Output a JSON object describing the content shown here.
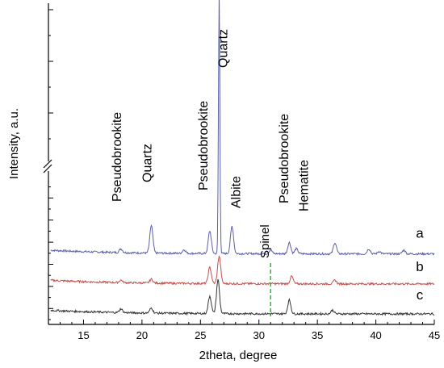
{
  "chart_data": {
    "type": "line",
    "xlabel": "2theta, degree",
    "ylabel": "Intensity, a.u.",
    "xlim": [
      12,
      45
    ],
    "xticks": [
      15,
      20,
      25,
      30,
      35,
      40,
      45
    ],
    "y_axis_break": true,
    "grid": false,
    "series": [
      {
        "name": "a",
        "color": "#5a5fa8",
        "baseline": 48,
        "peaks": [
          [
            18.2,
            3
          ],
          [
            20.8,
            22
          ],
          [
            23.6,
            3
          ],
          [
            25.8,
            18
          ],
          [
            26.6,
            210
          ],
          [
            27.7,
            22
          ],
          [
            31.0,
            3
          ],
          [
            32.6,
            9
          ],
          [
            33.2,
            4
          ],
          [
            36.5,
            9
          ],
          [
            39.4,
            4
          ],
          [
            40.3,
            2
          ],
          [
            42.4,
            3
          ]
        ]
      },
      {
        "name": "b",
        "color": "#c0504d",
        "baseline": 24,
        "peaks": [
          [
            18.2,
            2
          ],
          [
            20.8,
            3
          ],
          [
            25.8,
            13
          ],
          [
            26.6,
            22
          ],
          [
            32.8,
            6
          ],
          [
            36.5,
            3
          ]
        ]
      },
      {
        "name": "c",
        "color": "#333333",
        "baseline": 0,
        "peaks": [
          [
            18.2,
            3
          ],
          [
            20.8,
            4
          ],
          [
            25.8,
            14
          ],
          [
            26.5,
            27
          ],
          [
            32.6,
            11
          ],
          [
            36.3,
            3
          ]
        ]
      }
    ],
    "annotations": [
      {
        "text": "Pseudobrookite",
        "x": 18.2,
        "color": "#000000"
      },
      {
        "text": "Quartz",
        "x": 20.8,
        "color": "#000000"
      },
      {
        "text": "Pseudobrookite",
        "x": 25.6,
        "color": "#000000"
      },
      {
        "text": "Quartz",
        "x": 27.3,
        "color": "#000000"
      },
      {
        "text": "Albite",
        "x": 28.4,
        "color": "#000000"
      },
      {
        "text": "Pseudobrookite",
        "x": 32.5,
        "color": "#000000"
      },
      {
        "text": "Hematite",
        "x": 34.2,
        "color": "#000000"
      },
      {
        "text": "Spinel",
        "x": 31.0,
        "color": "#2db82d"
      }
    ]
  }
}
